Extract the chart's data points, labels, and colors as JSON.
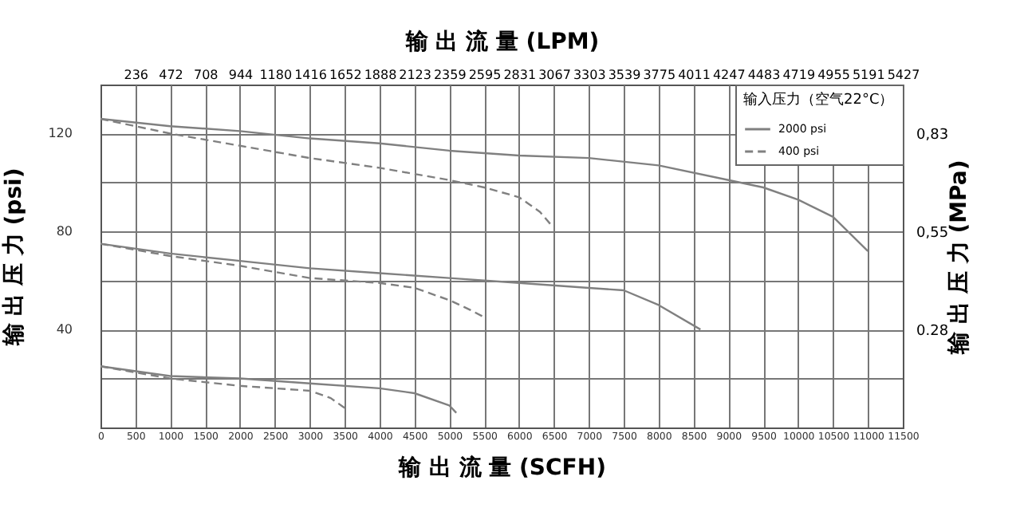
{
  "chart_data": {
    "type": "line",
    "xlabel": "输 出 流 量 (SCFH)",
    "x2label": "输 出 流 量 (LPM)",
    "ylabel": "输 出 压 力 (psi)",
    "y2label": "输 出 压 力 (MPa)",
    "legend_title": "输入压力（空气22°C）",
    "legend": "top right",
    "grid": true,
    "xlim": [
      0,
      11500
    ],
    "xticks": [
      0,
      500,
      1000,
      1500,
      2000,
      2500,
      3000,
      3500,
      4000,
      4500,
      5000,
      5500,
      6000,
      6500,
      7000,
      7500,
      8000,
      8500,
      9000,
      9500,
      10000,
      10500,
      11000,
      11500
    ],
    "x2lim": [
      0,
      5427
    ],
    "x2ticks": [
      236,
      472,
      708,
      944,
      1180,
      1416,
      1652,
      1888,
      2123,
      2359,
      2595,
      2831,
      3067,
      3303,
      3539,
      3775,
      4011,
      4247,
      4483,
      4719,
      4955,
      5191,
      5427
    ],
    "ylim": [
      0,
      140
    ],
    "yticks": [
      {
        "value": 20,
        "label": null
      },
      40,
      {
        "value": 60,
        "label": null
      },
      80,
      {
        "value": 100,
        "label": null
      },
      120
    ],
    "y2lim": [
      0,
      0.9653
    ],
    "y2ticks": [
      {
        "value": 0.2758,
        "label": "0.28"
      },
      {
        "value": 0.5516,
        "label": "0,55"
      },
      {
        "value": 0.8274,
        "label": "0,83"
      }
    ],
    "series": [
      {
        "name": "2000 psi",
        "color": "#808080",
        "line_style": "solid",
        "x": [
          0,
          1000,
          2000,
          3000,
          4000,
          5000,
          6000,
          7000,
          8000,
          9000,
          9500,
          10000,
          10500,
          11000
        ],
        "values": [
          126,
          123,
          121,
          118,
          116,
          113,
          111,
          110,
          107,
          101,
          98,
          93,
          86,
          72
        ]
      },
      {
        "name": "400 psi",
        "color": "#808080",
        "line_style": "dashed",
        "x": [
          0,
          500,
          1000,
          2000,
          3000,
          4000,
          5000,
          5500,
          6000,
          6300,
          6450
        ],
        "values": [
          126,
          123,
          120,
          115,
          110,
          106,
          101,
          98,
          94,
          88,
          83
        ]
      },
      {
        "color": "#808080",
        "line_style": "solid",
        "x": [
          0,
          1000,
          2000,
          3000,
          4000,
          5000,
          6000,
          7000,
          7500,
          8000,
          8600
        ],
        "values": [
          75,
          71,
          68,
          65,
          63,
          61,
          59,
          57,
          56,
          50,
          40
        ]
      },
      {
        "color": "#808080",
        "line_style": "dashed",
        "x": [
          0,
          1000,
          2000,
          3000,
          4000,
          4500,
          5000,
          5300,
          5500
        ],
        "values": [
          75,
          70,
          66,
          61,
          59,
          57,
          52,
          48,
          45
        ]
      },
      {
        "color": "#808080",
        "line_style": "solid",
        "x": [
          0,
          1000,
          2000,
          3000,
          4000,
          4500,
          5000,
          5100
        ],
        "values": [
          25,
          21,
          20,
          18,
          16,
          14,
          9,
          6
        ]
      },
      {
        "color": "#808080",
        "line_style": "dashed",
        "x": [
          0,
          1000,
          2000,
          2500,
          3000,
          3300,
          3500
        ],
        "values": [
          25,
          20,
          17,
          16,
          15,
          12,
          8
        ]
      }
    ]
  }
}
